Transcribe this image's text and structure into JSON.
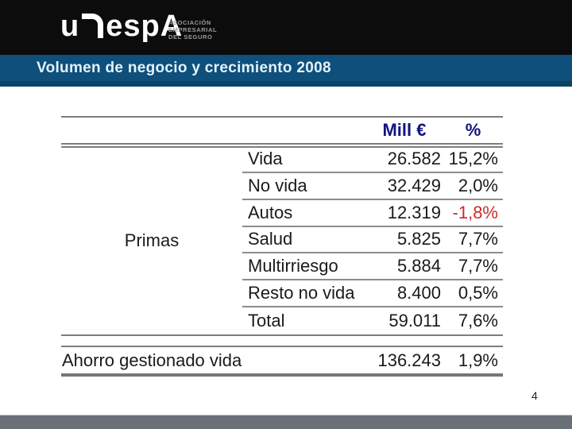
{
  "slide": {
    "title": "Volumen de negocio y crecimiento 2008",
    "page_number": "4",
    "logo": {
      "word_start": "u",
      "word_end": "espA",
      "tagline_line1": "ASOCIACIÓN",
      "tagline_line2": "EMPRESARIAL",
      "tagline_line3": "DEL SEGURO"
    }
  },
  "table": {
    "group_label": "Primas",
    "columns": {
      "mill": "Mill €",
      "pct": "%"
    },
    "rows": [
      {
        "label": "Vida",
        "mill": "26.582",
        "pct": "15,2%"
      },
      {
        "label": "No vida",
        "mill": "32.429",
        "pct": "2,0%"
      },
      {
        "label": "Autos",
        "mill": "12.319",
        "pct": "-1,8%"
      },
      {
        "label": "Salud",
        "mill": "5.825",
        "pct": "7,7%"
      },
      {
        "label": "Multirriesgo",
        "mill": "5.884",
        "pct": "7,7%"
      },
      {
        "label": "Resto no vida",
        "mill": "8.400",
        "pct": "0,5%"
      },
      {
        "label": "Total",
        "mill": "59.011",
        "pct": "7,6%"
      }
    ],
    "footer_row": {
      "label": "Ahorro gestionado vida",
      "mill": "136.243",
      "pct": "1,9%"
    }
  },
  "colors": {
    "top_band": "#0c0c0c",
    "title_band_blue": "#0e4f7c",
    "title_text": "#e4f2f8",
    "header_navy": "#14147e",
    "negative_red": "#cc2b2b",
    "table_line_gray": "#7d7d7d",
    "footer_gray": "#6a7078"
  }
}
